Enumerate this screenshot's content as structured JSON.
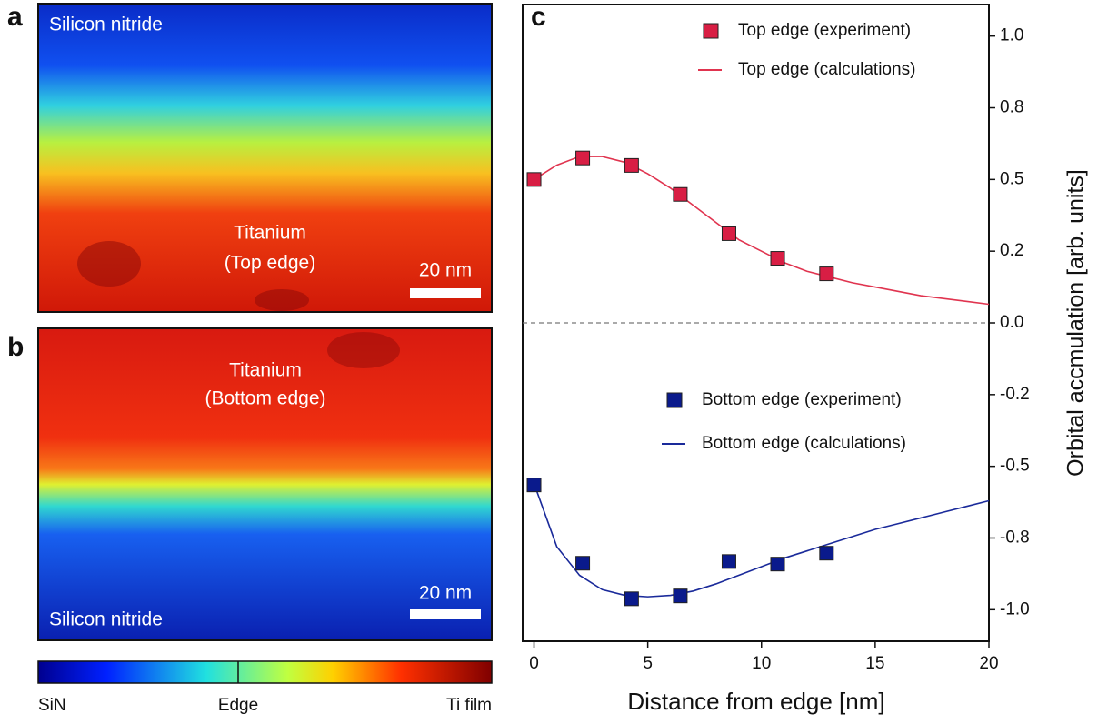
{
  "panel_a": {
    "label": "a",
    "region": "Silicon nitride",
    "metal": "Titanium",
    "edge": "(Top edge)",
    "scale_bar": "20 nm"
  },
  "panel_b": {
    "label": "b",
    "region": "Silicon nitride",
    "metal": "Titanium",
    "edge": "(Bottom edge)",
    "scale_bar": "20 nm"
  },
  "colorbar": {
    "labels": [
      "SiN",
      "Edge",
      "Ti film"
    ]
  },
  "chart_data": {
    "type": "scatter",
    "label": "c",
    "xlabel": "Distance from edge [nm]",
    "ylabel": "Orbital accmulation [arb. units]",
    "xlim": [
      -0.5,
      20
    ],
    "ylim": [
      -1.11,
      1.11
    ],
    "xticks": [
      0,
      5,
      10,
      15,
      20
    ],
    "yticks": [
      {
        "value": 1,
        "label": "1.0"
      },
      {
        "value": 0.75,
        "label": "0.8"
      },
      0.5,
      {
        "value": 0.25,
        "label": "0.2"
      },
      {
        "value": 0,
        "label": "0.0"
      },
      {
        "value": -0.25,
        "label": "-0.2"
      },
      -0.5,
      {
        "value": -0.75,
        "label": "-0.8"
      },
      {
        "value": -1,
        "label": "-1.0"
      }
    ],
    "reference_line": 0,
    "series": [
      {
        "name": "Top edge (experiment)",
        "type": "scatter",
        "color": "#d81e44",
        "x": [
          0,
          2.14,
          4.29,
          6.43,
          8.57,
          10.71,
          12.86
        ],
        "values": [
          0.5,
          0.575,
          0.549,
          0.448,
          0.311,
          0.225,
          0.171
        ]
      },
      {
        "name": "Top edge (calculations)",
        "type": "line",
        "color": "#e0344f",
        "x": [
          0,
          1,
          2,
          3,
          4,
          5,
          6,
          7,
          8,
          9,
          10,
          11,
          12,
          13,
          14,
          15,
          16,
          17,
          18,
          19,
          20
        ],
        "values": [
          0.5,
          0.55,
          0.58,
          0.58,
          0.56,
          0.52,
          0.47,
          0.41,
          0.35,
          0.29,
          0.25,
          0.21,
          0.18,
          0.16,
          0.14,
          0.125,
          0.11,
          0.095,
          0.085,
          0.075,
          0.065
        ]
      },
      {
        "name": "Bottom edge (experiment)",
        "type": "scatter",
        "color": "#0a1a8c",
        "x": [
          0,
          2.14,
          4.29,
          6.43,
          8.57,
          10.71,
          12.86
        ],
        "values": [
          -0.565,
          -0.838,
          -0.962,
          -0.952,
          -0.832,
          -0.841,
          -0.803
        ]
      },
      {
        "name": "Bottom edge (calculations)",
        "type": "line",
        "color": "#1a2a9a",
        "x": [
          0,
          1,
          2,
          3,
          4,
          5,
          6,
          7,
          8,
          9,
          10,
          11,
          12,
          13,
          14,
          15,
          16,
          17,
          18,
          19,
          20
        ],
        "values": [
          -0.56,
          -0.78,
          -0.88,
          -0.93,
          -0.95,
          -0.955,
          -0.95,
          -0.935,
          -0.91,
          -0.88,
          -0.85,
          -0.82,
          -0.795,
          -0.77,
          -0.745,
          -0.72,
          -0.7,
          -0.68,
          -0.66,
          -0.64,
          -0.62
        ]
      }
    ]
  }
}
